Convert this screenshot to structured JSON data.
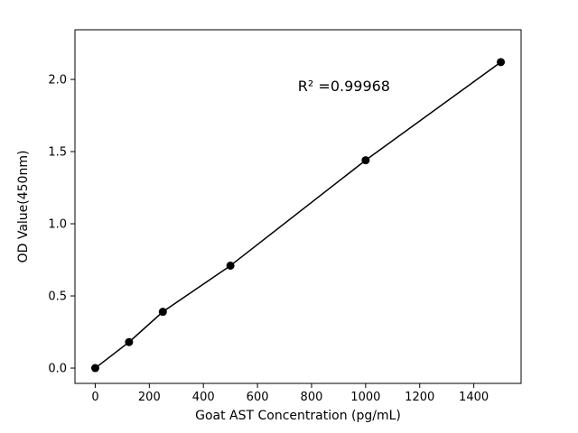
{
  "chart_data": {
    "type": "scatter",
    "title": "",
    "xlabel": "Goat AST Concentration (pg/mL)",
    "ylabel": "OD Value(450nm)",
    "annotation": "R² =0.99968",
    "annotation_x": 920,
    "annotation_y": 1.92,
    "x": [
      0,
      125,
      250,
      500,
      1000,
      1500
    ],
    "y": [
      0.0,
      0.18,
      0.39,
      0.71,
      1.44,
      2.12
    ],
    "xticks": [
      0,
      200,
      400,
      600,
      800,
      1000,
      1200,
      1400
    ],
    "yticks": [
      0.0,
      0.5,
      1.0,
      1.5,
      2.0
    ],
    "xlim": [
      -75,
      1575
    ],
    "ylim": [
      -0.106,
      2.344
    ],
    "line": true,
    "legend": "none",
    "grid": false,
    "marker_color": "#000000",
    "line_color": "#000000",
    "axis_color": "#000000",
    "background": "#ffffff"
  }
}
